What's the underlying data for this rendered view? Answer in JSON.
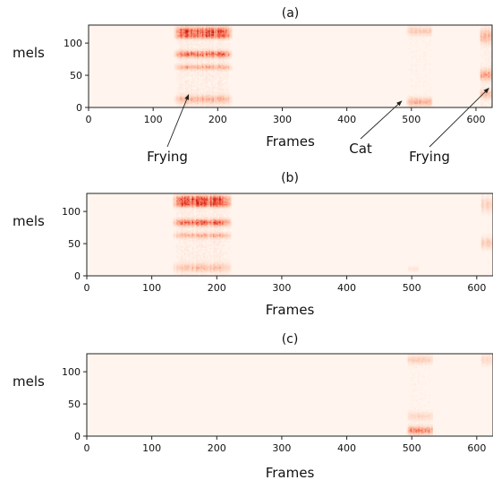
{
  "chart_data": [
    {
      "type": "heatmap",
      "title": "(a)",
      "xlabel": "Frames",
      "ylabel": "mels",
      "xlim": [
        0,
        625
      ],
      "ylim": [
        0,
        128
      ],
      "x_ticks": [
        0,
        100,
        200,
        300,
        400,
        500,
        600
      ],
      "y_ticks": [
        0,
        50,
        100
      ],
      "colormap": [
        "#fff5ee",
        "#fcbba1",
        "#f6553c",
        "#a50f15"
      ],
      "background_color": "#fff5ee",
      "regions": [
        {
          "x_range": [
            132,
            222
          ],
          "intensity": 0.55,
          "bands": [
            {
              "mel": 118,
              "width": 6,
              "intensity": 0.9
            },
            {
              "mel": 110,
              "width": 4,
              "intensity": 0.7
            },
            {
              "mel": 82,
              "width": 5,
              "intensity": 0.85
            },
            {
              "mel": 62,
              "width": 4,
              "intensity": 0.5
            },
            {
              "mel": 12,
              "width": 6,
              "intensity": 0.45
            }
          ]
        },
        {
          "x_range": [
            492,
            532
          ],
          "intensity": 0.3,
          "bands": [
            {
              "mel": 118,
              "width": 6,
              "intensity": 0.35
            },
            {
              "mel": 8,
              "width": 6,
              "intensity": 0.55
            }
          ]
        },
        {
          "x_range": [
            605,
            625
          ],
          "intensity": 0.45,
          "bands": [
            {
              "mel": 110,
              "width": 10,
              "intensity": 0.5
            },
            {
              "mel": 50,
              "width": 8,
              "intensity": 0.6
            },
            {
              "mel": 20,
              "width": 6,
              "intensity": 0.45
            }
          ]
        }
      ],
      "annotations": [
        {
          "text": "Frying",
          "point": [
            155,
            20
          ]
        },
        {
          "text": "Cat",
          "point": [
            485,
            10
          ]
        },
        {
          "text": "Frying",
          "point": [
            620,
            30
          ]
        }
      ]
    },
    {
      "type": "heatmap",
      "title": "(b)",
      "xlabel": "Frames",
      "ylabel": "mels",
      "xlim": [
        0,
        625
      ],
      "ylim": [
        0,
        128
      ],
      "x_ticks": [
        0,
        100,
        200,
        300,
        400,
        500,
        600
      ],
      "y_ticks": [
        0,
        50,
        100
      ],
      "colormap": [
        "#fff5ee",
        "#fcbba1",
        "#f6553c",
        "#a50f15"
      ],
      "background_color": "#fff5ee",
      "regions": [
        {
          "x_range": [
            132,
            222
          ],
          "intensity": 0.55,
          "bands": [
            {
              "mel": 118,
              "width": 6,
              "intensity": 0.9
            },
            {
              "mel": 110,
              "width": 4,
              "intensity": 0.75
            },
            {
              "mel": 82,
              "width": 5,
              "intensity": 0.85
            },
            {
              "mel": 62,
              "width": 4,
              "intensity": 0.45
            },
            {
              "mel": 12,
              "width": 6,
              "intensity": 0.35
            }
          ]
        },
        {
          "x_range": [
            492,
            510
          ],
          "intensity": 0.1,
          "bands": [
            {
              "mel": 10,
              "width": 4,
              "intensity": 0.12
            }
          ]
        },
        {
          "x_range": [
            605,
            625
          ],
          "intensity": 0.2,
          "bands": [
            {
              "mel": 110,
              "width": 10,
              "intensity": 0.25
            },
            {
              "mel": 50,
              "width": 8,
              "intensity": 0.3
            }
          ]
        }
      ],
      "annotations": []
    },
    {
      "type": "heatmap",
      "title": "(c)",
      "xlabel": "Frames",
      "ylabel": "mels",
      "xlim": [
        0,
        625
      ],
      "ylim": [
        0,
        128
      ],
      "x_ticks": [
        0,
        100,
        200,
        300,
        400,
        500,
        600
      ],
      "y_ticks": [
        0,
        50,
        100
      ],
      "colormap": [
        "#fff5ee",
        "#fcbba1",
        "#f6553c",
        "#a50f15"
      ],
      "background_color": "#fff5ee",
      "regions": [
        {
          "x_range": [
            492,
            532
          ],
          "intensity": 0.3,
          "bands": [
            {
              "mel": 118,
              "width": 6,
              "intensity": 0.35
            },
            {
              "mel": 30,
              "width": 6,
              "intensity": 0.25
            },
            {
              "mel": 8,
              "width": 6,
              "intensity": 0.8
            }
          ]
        },
        {
          "x_range": [
            605,
            625
          ],
          "intensity": 0.12,
          "bands": [
            {
              "mel": 118,
              "width": 8,
              "intensity": 0.2
            }
          ]
        }
      ],
      "annotations": []
    }
  ]
}
